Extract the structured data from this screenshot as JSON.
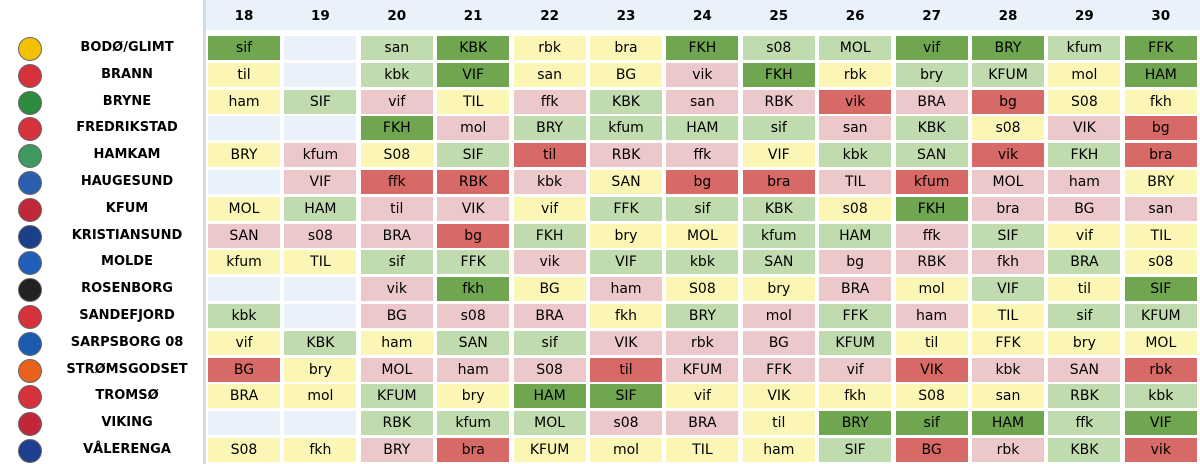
{
  "rounds": [
    "18",
    "19",
    "20",
    "21",
    "22",
    "23",
    "24",
    "25",
    "26",
    "27",
    "28",
    "29",
    "30"
  ],
  "palette": {
    "sd": "#6fa64f",
    "sl": "#c0dbae",
    "y": "#fbf6b6",
    "pl": "#ecc8cb",
    "pd": "#d76a67",
    "e": "#e9f1fb"
  },
  "teams": [
    {
      "name": "BODØ/GLIMT",
      "logo": "bodo-glimt-logo",
      "logo_color": "#f2c200",
      "cells": [
        [
          "sif",
          "sd"
        ],
        [
          "",
          "e"
        ],
        [
          "san",
          "sl"
        ],
        [
          "KBK",
          "sd"
        ],
        [
          "rbk",
          "y"
        ],
        [
          "bra",
          "y"
        ],
        [
          "FKH",
          "sd"
        ],
        [
          "s08",
          "sl"
        ],
        [
          "MOL",
          "sl"
        ],
        [
          "vif",
          "sd"
        ],
        [
          "BRY",
          "sd"
        ],
        [
          "kfum",
          "sl"
        ],
        [
          "FFK",
          "sd"
        ]
      ]
    },
    {
      "name": "BRANN",
      "logo": "brann-logo",
      "logo_color": "#d6323c",
      "cells": [
        [
          "til",
          "y"
        ],
        [
          "",
          "e"
        ],
        [
          "kbk",
          "sl"
        ],
        [
          "VIF",
          "sd"
        ],
        [
          "san",
          "y"
        ],
        [
          "BG",
          "y"
        ],
        [
          "vik",
          "pl"
        ],
        [
          "FKH",
          "sd"
        ],
        [
          "rbk",
          "y"
        ],
        [
          "bry",
          "sl"
        ],
        [
          "KFUM",
          "sl"
        ],
        [
          "mol",
          "y"
        ],
        [
          "HAM",
          "sd"
        ]
      ]
    },
    {
      "name": "BRYNE",
      "logo": "bryne-logo",
      "logo_color": "#2e8b3e",
      "cells": [
        [
          "ham",
          "y"
        ],
        [
          "SIF",
          "sl"
        ],
        [
          "vif",
          "pl"
        ],
        [
          "TIL",
          "y"
        ],
        [
          "ffk",
          "pl"
        ],
        [
          "KBK",
          "sl"
        ],
        [
          "san",
          "pl"
        ],
        [
          "RBK",
          "pl"
        ],
        [
          "vik",
          "pd"
        ],
        [
          "BRA",
          "pl"
        ],
        [
          "bg",
          "pd"
        ],
        [
          "S08",
          "y"
        ],
        [
          "fkh",
          "y"
        ]
      ]
    },
    {
      "name": "FREDRIKSTAD",
      "logo": "fredrikstad-logo",
      "logo_color": "#d6323c",
      "cells": [
        [
          "",
          "e"
        ],
        [
          "",
          "e"
        ],
        [
          "FKH",
          "sd"
        ],
        [
          "mol",
          "pl"
        ],
        [
          "BRY",
          "sl"
        ],
        [
          "kfum",
          "sl"
        ],
        [
          "HAM",
          "sl"
        ],
        [
          "sif",
          "sl"
        ],
        [
          "san",
          "pl"
        ],
        [
          "KBK",
          "sl"
        ],
        [
          "s08",
          "y"
        ],
        [
          "VIK",
          "pl"
        ],
        [
          "bg",
          "pd"
        ]
      ]
    },
    {
      "name": "HAMKAM",
      "logo": "hamkam-logo",
      "logo_color": "#3f9a5e",
      "cells": [
        [
          "BRY",
          "y"
        ],
        [
          "kfum",
          "pl"
        ],
        [
          "S08",
          "y"
        ],
        [
          "SIF",
          "sl"
        ],
        [
          "til",
          "pd"
        ],
        [
          "RBK",
          "pl"
        ],
        [
          "ffk",
          "pl"
        ],
        [
          "VIF",
          "y"
        ],
        [
          "kbk",
          "sl"
        ],
        [
          "SAN",
          "sl"
        ],
        [
          "vik",
          "pd"
        ],
        [
          "FKH",
          "sl"
        ],
        [
          "bra",
          "pd"
        ]
      ]
    },
    {
      "name": "HAUGESUND",
      "logo": "haugesund-logo",
      "logo_color": "#2a5fb0",
      "cells": [
        [
          "",
          "e"
        ],
        [
          "VIF",
          "pl"
        ],
        [
          "ffk",
          "pd"
        ],
        [
          "RBK",
          "pd"
        ],
        [
          "kbk",
          "pl"
        ],
        [
          "SAN",
          "y"
        ],
        [
          "bg",
          "pd"
        ],
        [
          "bra",
          "pd"
        ],
        [
          "TIL",
          "pl"
        ],
        [
          "kfum",
          "pd"
        ],
        [
          "MOL",
          "pl"
        ],
        [
          "ham",
          "pl"
        ],
        [
          "BRY",
          "y"
        ]
      ]
    },
    {
      "name": "KFUM",
      "logo": "kfum-logo",
      "logo_color": "#c0283a",
      "cells": [
        [
          "MOL",
          "y"
        ],
        [
          "HAM",
          "sl"
        ],
        [
          "til",
          "pl"
        ],
        [
          "VIK",
          "pl"
        ],
        [
          "vif",
          "y"
        ],
        [
          "FFK",
          "sl"
        ],
        [
          "sif",
          "sl"
        ],
        [
          "KBK",
          "sl"
        ],
        [
          "s08",
          "y"
        ],
        [
          "FKH",
          "sd"
        ],
        [
          "bra",
          "pl"
        ],
        [
          "BG",
          "pl"
        ],
        [
          "san",
          "pl"
        ]
      ]
    },
    {
      "name": "KRISTIANSUND",
      "logo": "kristiansund-logo",
      "logo_color": "#1c3f8a",
      "cells": [
        [
          "SAN",
          "pl"
        ],
        [
          "s08",
          "pl"
        ],
        [
          "BRA",
          "pl"
        ],
        [
          "bg",
          "pd"
        ],
        [
          "FKH",
          "sl"
        ],
        [
          "bry",
          "y"
        ],
        [
          "MOL",
          "y"
        ],
        [
          "kfum",
          "sl"
        ],
        [
          "HAM",
          "sl"
        ],
        [
          "ffk",
          "pl"
        ],
        [
          "SIF",
          "sl"
        ],
        [
          "vif",
          "y"
        ],
        [
          "TIL",
          "y"
        ]
      ]
    },
    {
      "name": "MOLDE",
      "logo": "molde-logo",
      "logo_color": "#1f5fb8",
      "cells": [
        [
          "kfum",
          "y"
        ],
        [
          "TIL",
          "y"
        ],
        [
          "sif",
          "sl"
        ],
        [
          "FFK",
          "sl"
        ],
        [
          "vik",
          "pl"
        ],
        [
          "VIF",
          "sl"
        ],
        [
          "kbk",
          "sl"
        ],
        [
          "SAN",
          "sl"
        ],
        [
          "bg",
          "pl"
        ],
        [
          "RBK",
          "pl"
        ],
        [
          "fkh",
          "pl"
        ],
        [
          "BRA",
          "sl"
        ],
        [
          "s08",
          "y"
        ]
      ]
    },
    {
      "name": "ROSENBORG",
      "logo": "rosenborg-logo",
      "logo_color": "#222222",
      "cells": [
        [
          "",
          "e"
        ],
        [
          "",
          "e"
        ],
        [
          "vik",
          "pl"
        ],
        [
          "fkh",
          "sd"
        ],
        [
          "BG",
          "y"
        ],
        [
          "ham",
          "pl"
        ],
        [
          "S08",
          "y"
        ],
        [
          "bry",
          "y"
        ],
        [
          "BRA",
          "pl"
        ],
        [
          "mol",
          "y"
        ],
        [
          "VIF",
          "sl"
        ],
        [
          "til",
          "y"
        ],
        [
          "SIF",
          "sd"
        ]
      ]
    },
    {
      "name": "SANDEFJORD",
      "logo": "sandefjord-logo",
      "logo_color": "#d6323c",
      "cells": [
        [
          "kbk",
          "sl"
        ],
        [
          "",
          "e"
        ],
        [
          "BG",
          "pl"
        ],
        [
          "s08",
          "pl"
        ],
        [
          "BRA",
          "pl"
        ],
        [
          "fkh",
          "y"
        ],
        [
          "BRY",
          "sl"
        ],
        [
          "mol",
          "pl"
        ],
        [
          "FFK",
          "sl"
        ],
        [
          "ham",
          "pl"
        ],
        [
          "TIL",
          "y"
        ],
        [
          "sif",
          "sl"
        ],
        [
          "KFUM",
          "sl"
        ]
      ]
    },
    {
      "name": "SARPSBORG 08",
      "logo": "sarpsborg-logo",
      "logo_color": "#1c5bb0",
      "cells": [
        [
          "vif",
          "y"
        ],
        [
          "KBK",
          "sl"
        ],
        [
          "ham",
          "y"
        ],
        [
          "SAN",
          "sl"
        ],
        [
          "sif",
          "sl"
        ],
        [
          "VIK",
          "pl"
        ],
        [
          "rbk",
          "pl"
        ],
        [
          "BG",
          "pl"
        ],
        [
          "KFUM",
          "sl"
        ],
        [
          "til",
          "y"
        ],
        [
          "FFK",
          "y"
        ],
        [
          "bry",
          "y"
        ],
        [
          "MOL",
          "y"
        ]
      ]
    },
    {
      "name": "STRØMSGODSET",
      "logo": "stromsgodset-logo",
      "logo_color": "#e8621e",
      "cells": [
        [
          "BG",
          "pd"
        ],
        [
          "bry",
          "y"
        ],
        [
          "MOL",
          "pl"
        ],
        [
          "ham",
          "pl"
        ],
        [
          "S08",
          "pl"
        ],
        [
          "til",
          "pd"
        ],
        [
          "KFUM",
          "pl"
        ],
        [
          "FFK",
          "pl"
        ],
        [
          "vif",
          "pl"
        ],
        [
          "VIK",
          "pd"
        ],
        [
          "kbk",
          "pl"
        ],
        [
          "SAN",
          "pl"
        ],
        [
          "rbk",
          "pd"
        ]
      ]
    },
    {
      "name": "TROMSØ",
      "logo": "tromso-logo",
      "logo_color": "#d6323c",
      "cells": [
        [
          "BRA",
          "y"
        ],
        [
          "mol",
          "y"
        ],
        [
          "KFUM",
          "sl"
        ],
        [
          "bry",
          "y"
        ],
        [
          "HAM",
          "sd"
        ],
        [
          "SIF",
          "sd"
        ],
        [
          "vif",
          "y"
        ],
        [
          "VIK",
          "y"
        ],
        [
          "fkh",
          "y"
        ],
        [
          "S08",
          "y"
        ],
        [
          "san",
          "y"
        ],
        [
          "RBK",
          "sl"
        ],
        [
          "kbk",
          "sl"
        ]
      ]
    },
    {
      "name": "VIKING",
      "logo": "viking-logo",
      "logo_color": "#c0283a",
      "cells": [
        [
          "",
          "e"
        ],
        [
          "",
          "e"
        ],
        [
          "RBK",
          "sl"
        ],
        [
          "kfum",
          "sl"
        ],
        [
          "MOL",
          "sl"
        ],
        [
          "s08",
          "pl"
        ],
        [
          "BRA",
          "pl"
        ],
        [
          "til",
          "y"
        ],
        [
          "BRY",
          "sd"
        ],
        [
          "sif",
          "sd"
        ],
        [
          "HAM",
          "sd"
        ],
        [
          "ffk",
          "sl"
        ],
        [
          "VIF",
          "sd"
        ]
      ]
    },
    {
      "name": "VÅLERENGA",
      "logo": "valerenga-logo",
      "logo_color": "#1e3f8f",
      "cells": [
        [
          "S08",
          "y"
        ],
        [
          "fkh",
          "y"
        ],
        [
          "BRY",
          "pl"
        ],
        [
          "bra",
          "pd"
        ],
        [
          "KFUM",
          "y"
        ],
        [
          "mol",
          "y"
        ],
        [
          "TIL",
          "y"
        ],
        [
          "ham",
          "y"
        ],
        [
          "SIF",
          "sl"
        ],
        [
          "BG",
          "pd"
        ],
        [
          "rbk",
          "pl"
        ],
        [
          "KBK",
          "sl"
        ],
        [
          "vik",
          "pd"
        ]
      ]
    }
  ]
}
